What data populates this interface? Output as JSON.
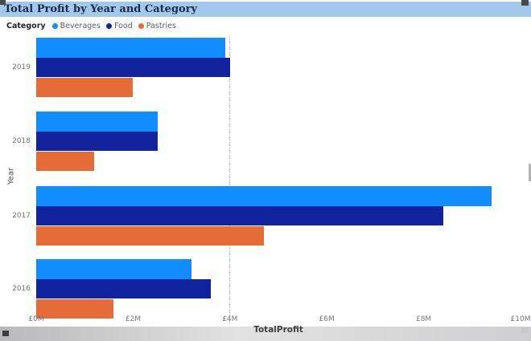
{
  "title": "Total Profit by Year and Category",
  "legend": {
    "label": "Category",
    "items": [
      {
        "name": "Beverages",
        "color": "#118DFF"
      },
      {
        "name": "Food",
        "color": "#12239E"
      },
      {
        "name": "Pastries",
        "color": "#E66C37"
      }
    ]
  },
  "chart_data": {
    "type": "bar",
    "orientation": "horizontal",
    "title": "Total Profit by Year and Category",
    "xlabel": "TotalProfit",
    "ylabel": "Year",
    "categories": [
      "2019",
      "2018",
      "2017",
      "2016"
    ],
    "series": [
      {
        "name": "Beverages",
        "color": "#118DFF",
        "values": [
          3.9,
          2.5,
          9.4,
          3.2
        ]
      },
      {
        "name": "Food",
        "color": "#12239E",
        "values": [
          4.0,
          2.5,
          8.4,
          3.6
        ]
      },
      {
        "name": "Pastries",
        "color": "#E66C37",
        "values": [
          2.0,
          1.2,
          4.7,
          1.6
        ]
      }
    ],
    "xlim": [
      0,
      10
    ],
    "x_ticks": [
      "£0M",
      "£2M",
      "£4M",
      "£6M",
      "£8M",
      "£10M"
    ],
    "x_tick_values": [
      0,
      2,
      4,
      6,
      8,
      10
    ],
    "unit": "£M",
    "grid": "single dotted guide at £4M",
    "legend_position": "top"
  },
  "colors": {
    "title_highlight": "#a3c8ec",
    "title_text": "#1b2a45",
    "axis_text": "#767676",
    "canvas_bg": "#ffffff"
  },
  "selection": {
    "state": "visual selected with resize handles"
  }
}
